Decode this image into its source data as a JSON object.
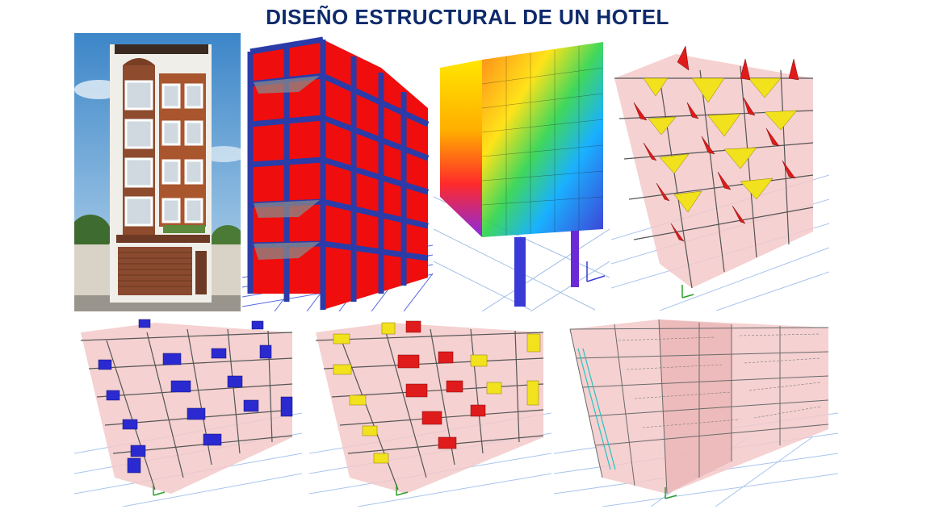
{
  "page": {
    "title": "DISEÑO ESTRUCTURAL  DE UN HOTEL",
    "title_color": "#0d2a6b"
  },
  "panels": [
    {
      "id": "p1",
      "icon": "hotel-facade-render"
    },
    {
      "id": "p2",
      "icon": "structural-model-walls"
    },
    {
      "id": "p3",
      "icon": "stress-contour-model"
    },
    {
      "id": "p4",
      "icon": "moment-diagram-model"
    },
    {
      "id": "p5",
      "icon": "shear-diagram-model"
    },
    {
      "id": "p6",
      "icon": "axial-diagram-model"
    },
    {
      "id": "p7",
      "icon": "section-labels-model"
    }
  ],
  "colors": {
    "wall_red": "#f00d0d",
    "frame_blue": "#2b3ba8",
    "diagram_yellow": "#f1e21d",
    "diagram_red": "#e01b1b",
    "diagram_blue": "#2a2ad0",
    "shell_pink": "#f3c9c9",
    "grid_blue": "#8fb2e6",
    "facade_brown": "#8e4b2e"
  }
}
